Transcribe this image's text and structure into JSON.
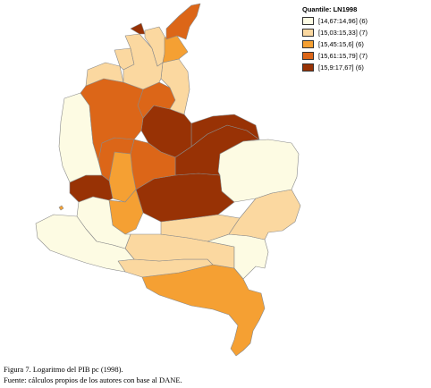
{
  "legend": {
    "title": "Quantile: LN1998",
    "classes": [
      {
        "label": "[14,67:14,96] (6)",
        "color": "#fdfbe3"
      },
      {
        "label": "[15,03:15,33] (7)",
        "color": "#fbd8a0"
      },
      {
        "label": "[15,45:15,6] (6)",
        "color": "#f5a033"
      },
      {
        "label": "[15,61:15,79] (7)",
        "color": "#dc6618"
      },
      {
        "label": "[15,9:17,67] (6)",
        "color": "#983205"
      }
    ]
  },
  "caption": {
    "figure": "Figura 7.  Logaritmo del PIB pc (1998).",
    "source": "Fuente: cálculos propios de los autores con base al DANE."
  }
}
